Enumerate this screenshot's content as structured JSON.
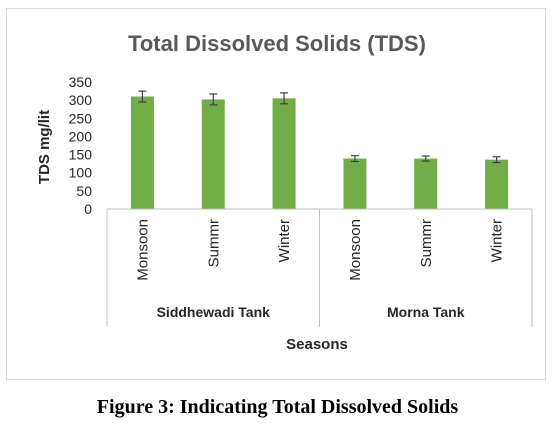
{
  "caption": "Figure 3: Indicating Total Dissolved Solids",
  "chart_data": {
    "type": "bar",
    "title": "Total Dissolved Solids (TDS)",
    "xlabel": "Seasons",
    "ylabel": "TDS mg/lit",
    "ylim": [
      0,
      350
    ],
    "yticks": [
      0,
      50,
      100,
      150,
      200,
      250,
      300,
      350
    ],
    "grid": false,
    "legend": "none",
    "bar_color": "#70ad47",
    "groups": [
      {
        "label": "Siddhewadi Tank",
        "categories": [
          "Monsoon",
          "Summr",
          "Winter"
        ]
      },
      {
        "label": "Morna Tank",
        "categories": [
          "Monsoon",
          "Summr",
          "Winter"
        ]
      }
    ],
    "values": [
      310,
      302,
      305,
      139,
      139,
      136
    ],
    "error": [
      15,
      15,
      15,
      8,
      7,
      8
    ]
  }
}
